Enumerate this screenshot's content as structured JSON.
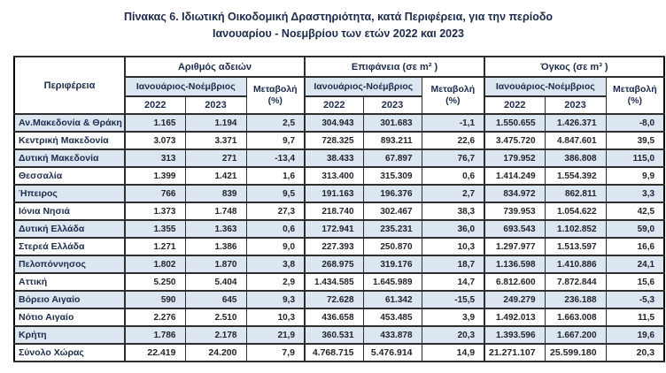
{
  "title": {
    "line1": "Πίνακας 6. Ιδιωτική  Οικοδομική Δραστηριότητα, κατά Περιφέρεια, για την περίοδο",
    "line2": "Ιανουαρίου - Νοεμβρίου των ετών 2022 και 2023"
  },
  "table": {
    "region_header": "Περιφέρεια",
    "groups": [
      {
        "label": "Αριθμός αδειών",
        "period": "Ιανουάριος-Νοέμβριος",
        "change": "Μεταβολή\n(%)",
        "years": [
          "2022",
          "2023"
        ]
      },
      {
        "label": "Επιφάνεια (σε m² )",
        "period": "Ιανουάριος-Νοέμβριος",
        "change": "Μεταβολή\n(%)",
        "years": [
          "2022",
          "2023"
        ]
      },
      {
        "label": "Όγκος (σε m³ )",
        "period": "Ιανουάριος-Νοέμβριος",
        "change": "Μεταβολή\n(%)",
        "years": [
          "2022",
          "2023"
        ]
      }
    ],
    "rows": [
      {
        "region": "Αν.Μακεδονία & Θράκη",
        "values": [
          "1.165",
          "1.194",
          "2,5",
          "304.943",
          "301.683",
          "-1,1",
          "1.550.655",
          "1.426.371",
          "-8,0"
        ],
        "total": false
      },
      {
        "region": "Κεντρική Μακεδονία",
        "values": [
          "3.073",
          "3.371",
          "9,7",
          "728.325",
          "893.211",
          "22,6",
          "3.475.720",
          "4.847.601",
          "39,5"
        ],
        "total": false
      },
      {
        "region": "Δυτική Μακεδονία",
        "values": [
          "313",
          "271",
          "-13,4",
          "38.433",
          "67.897",
          "76,7",
          "179.952",
          "386.808",
          "115,0"
        ],
        "total": false
      },
      {
        "region": "Θεσσαλία",
        "values": [
          "1.399",
          "1.421",
          "1,6",
          "313.400",
          "315.309",
          "0,6",
          "1.414.249",
          "1.554.392",
          "9,9"
        ],
        "total": false
      },
      {
        "region": "Ήπειρος",
        "values": [
          "766",
          "839",
          "9,5",
          "191.163",
          "196.376",
          "2,7",
          "834.972",
          "862.811",
          "3,3"
        ],
        "total": false
      },
      {
        "region": "Ιόνια Νησιά",
        "values": [
          "1.373",
          "1.748",
          "27,3",
          "218.740",
          "302.467",
          "38,3",
          "739.953",
          "1.054.622",
          "42,5"
        ],
        "total": false
      },
      {
        "region": "Δυτική Ελλάδα",
        "values": [
          "1.355",
          "1.363",
          "0,6",
          "172.941",
          "235.231",
          "36,0",
          "693.543",
          "1.102.852",
          "59,0"
        ],
        "total": false
      },
      {
        "region": "Στερεά Ελλάδα",
        "values": [
          "1.271",
          "1.386",
          "9,0",
          "227.393",
          "250.870",
          "10,3",
          "1.297.977",
          "1.513.597",
          "16,6"
        ],
        "total": false
      },
      {
        "region": "Πελοπόννησος",
        "values": [
          "1.802",
          "1.870",
          "3,8",
          "268.975",
          "319.176",
          "18,7",
          "1.136.598",
          "1.410.886",
          "24,1"
        ],
        "total": false
      },
      {
        "region": "Αττική",
        "values": [
          "5.250",
          "5.404",
          "2,9",
          "1.434.585",
          "1.645.989",
          "14,7",
          "6.812.600",
          "7.872.844",
          "15,6"
        ],
        "total": false
      },
      {
        "region": "Βόρειο Αιγαίο",
        "values": [
          "590",
          "645",
          "9,3",
          "72.628",
          "61.342",
          "-15,5",
          "249.279",
          "236.188",
          "-5,3"
        ],
        "total": false
      },
      {
        "region": "Νότιο Αιγαίο",
        "values": [
          "2.276",
          "2.510",
          "10,3",
          "436.658",
          "453.485",
          "3,9",
          "1.492.013",
          "1.663.008",
          "11,5"
        ],
        "total": false
      },
      {
        "region": "Κρήτη",
        "values": [
          "1.786",
          "2.178",
          "21,9",
          "360.531",
          "433.878",
          "20,3",
          "1.393.596",
          "1.667.200",
          "19,6"
        ],
        "total": false
      },
      {
        "region": "Σύνολο Χώρας",
        "values": [
          "22.419",
          "24.200",
          "7,9",
          "4.768.715",
          "5.476.914",
          "14,9",
          "21.271.107",
          "25.599.180",
          "20,3"
        ],
        "total": true
      }
    ],
    "colors": {
      "shade": "#dce6f1",
      "header_text": "#1c2b4a",
      "number_text": "#20242c",
      "border": "#2e2e2e"
    }
  }
}
